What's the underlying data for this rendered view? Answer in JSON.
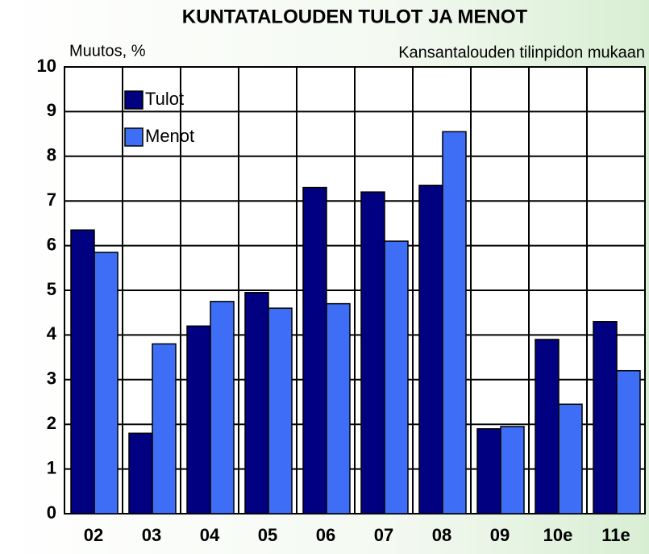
{
  "chart_data": {
    "type": "bar",
    "title": "KUNTATALOUDEN TULOT JA MENOT",
    "y_label": "Muutos, %",
    "subtitle": "Kansantalouden tilinpidon mukaan",
    "categories": [
      "02",
      "03",
      "04",
      "05",
      "06",
      "07",
      "08",
      "09",
      "10e",
      "11e"
    ],
    "series": [
      {
        "name": "Tulot",
        "color": "#000080",
        "values": [
          6.35,
          1.8,
          4.2,
          4.95,
          7.3,
          7.2,
          7.35,
          1.9,
          3.9,
          4.3
        ]
      },
      {
        "name": "Menot",
        "color": "#3d6ef5",
        "values": [
          5.85,
          3.8,
          4.75,
          4.6,
          4.7,
          6.1,
          8.55,
          1.95,
          2.45,
          3.2
        ]
      }
    ],
    "ylim": [
      0,
      10
    ],
    "yticks": [
      0,
      1,
      2,
      3,
      4,
      5,
      6,
      7,
      8,
      9,
      10
    ],
    "grid": true,
    "legend": "top-left"
  }
}
